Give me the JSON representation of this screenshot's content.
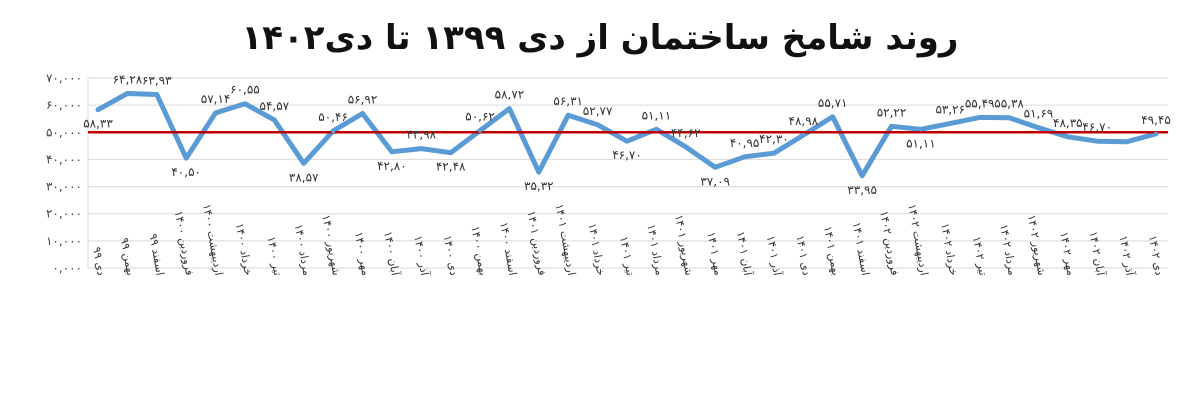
{
  "chart_data": {
    "type": "line",
    "title": "روند شامخ ساختمان از دی ۱۳۹۹ تا دی۱۴۰۲",
    "ylim": [
      0,
      70
    ],
    "yticks": [
      "۰,۰۰۰",
      "۱۰,۰۰۰",
      "۲۰,۰۰۰",
      "۳۰,۰۰۰",
      "۴۰,۰۰۰",
      "۵۰,۰۰۰",
      "۶۰,۰۰۰",
      "۷۰,۰۰۰"
    ],
    "grid": true,
    "colors": {
      "series": "#5b9bd5",
      "reference": "#c00000",
      "grid": "#d9d9d9"
    },
    "reference_line": 50,
    "categories": [
      "دی ۹۹",
      "بهمن ۹۹",
      "اسفند ۹۹",
      "فروردین ۱۴۰۰",
      "اردیبهشت ۱۴۰۰",
      "خرداد ۱۴۰۰",
      "تیر ۱۴۰۰",
      "مرداد ۱۴۰۰",
      "شهریور ۱۴۰۰",
      "مهر ۱۴۰۰",
      "آبان ۱۴۰۰",
      "آذر ۱۴۰۰",
      "دی ۱۴۰۰",
      "بهمن ۱۴۰۰",
      "اسفند ۱۴۰۰",
      "فروردین ۱۴۰۱",
      "اردیبهشت ۱۴۰۱",
      "خرداد ۱۴۰۱",
      "تیر ۱۴۰۱",
      "مرداد ۱۴۰۱",
      "شهریور ۱۴۰۱",
      "مهر ۱۴۰۱",
      "آبان ۱۴۰۱",
      "آذر ۱۴۰۱",
      "دی ۱۴۰۱",
      "بهمن ۱۴۰۱",
      "اسفند ۱۴۰۱",
      "فروردین ۱۴۰۲",
      "اردیبهشت ۱۴۰۲",
      "خرداد ۱۴۰۲",
      "تیر ۱۴۰۲",
      "مرداد ۱۴۰۲",
      "شهریور ۱۴۰۲",
      "مهر ۱۴۰۲",
      "آبان ۱۴۰۲",
      "آذر ۱۴۰۲",
      "دی ۱۴۰۲"
    ],
    "values": [
      58.33,
      64.28,
      63.93,
      40.5,
      57.14,
      60.55,
      54.57,
      38.57,
      50.46,
      56.92,
      42.8,
      43.98,
      42.48,
      50.62,
      58.72,
      35.32,
      56.31,
      52.77,
      46.7,
      51.11,
      44.62,
      37.09,
      40.95,
      42.3,
      48.98,
      55.71,
      33.95,
      52.22,
      51.11,
      53.26,
      55.49,
      55.38,
      51.69,
      48.35,
      46.7,
      46.5,
      49.45
    ],
    "labels": [
      "۵۸,۳۳",
      "۶۴,۲۸",
      "۶۳,۹۳",
      "۴۰,۵۰",
      "۵۷,۱۴",
      "۶۰,۵۵",
      "۵۴,۵۷",
      "۳۸,۵۷",
      "۵۰,۴۶",
      "۵۶,۹۲",
      "۴۲,۸۰",
      "۴۳,۹۸",
      "۴۲,۴۸",
      "۵۰,۶۲",
      "۵۸,۷۲",
      "۳۵,۳۲",
      "۵۶,۳۱",
      "۵۲,۷۷",
      "۴۶,۷۰",
      "۵۱,۱۱",
      "۴۴,۶۲",
      "۳۷,۰۹",
      "۴۰,۹۵",
      "۴۲,۳۰",
      "۴۸,۹۸",
      "۵۵,۷۱",
      "۳۳,۹۵",
      "۵۲,۲۲",
      "۵۱,۱۱",
      "۵۳,۲۶",
      "۵۵,۴۹",
      "۵۵,۳۸",
      "۵۱,۶۹",
      "۴۸,۳۵",
      "۴۶,۷۰",
      "",
      "۴۹,۴۵"
    ]
  }
}
